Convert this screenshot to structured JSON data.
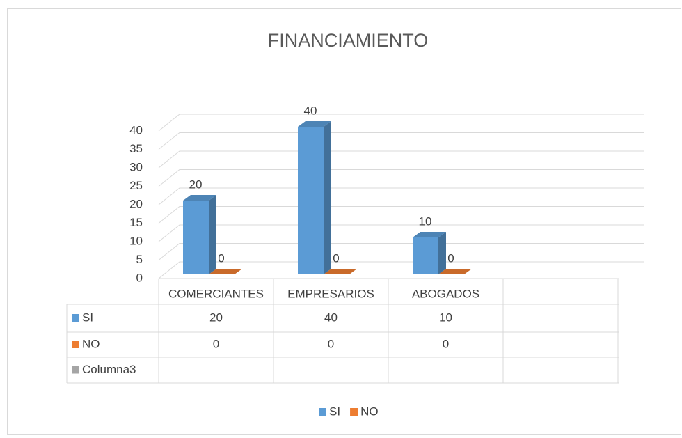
{
  "chart_data": {
    "type": "bar3d",
    "title": "FINANCIAMIENTO",
    "categories": [
      "COMERCIANTES",
      "EMPRESARIOS",
      "ABOGADOS",
      null
    ],
    "series": [
      {
        "name": "SI",
        "color": "#5b9bd5",
        "values": [
          20,
          40,
          10,
          null
        ]
      },
      {
        "name": "NO",
        "color": "#ed7d31",
        "values": [
          0,
          0,
          0,
          null
        ]
      },
      {
        "name": "Columna3",
        "color": "#a5a5a5",
        "values": [
          null,
          null,
          null,
          null
        ],
        "in_legend": false
      }
    ],
    "ylim": [
      0,
      40
    ],
    "yticks": [
      0,
      5,
      10,
      15,
      20,
      25,
      30,
      35,
      40
    ],
    "grid": true,
    "legend": "bottom",
    "data_table": true
  }
}
